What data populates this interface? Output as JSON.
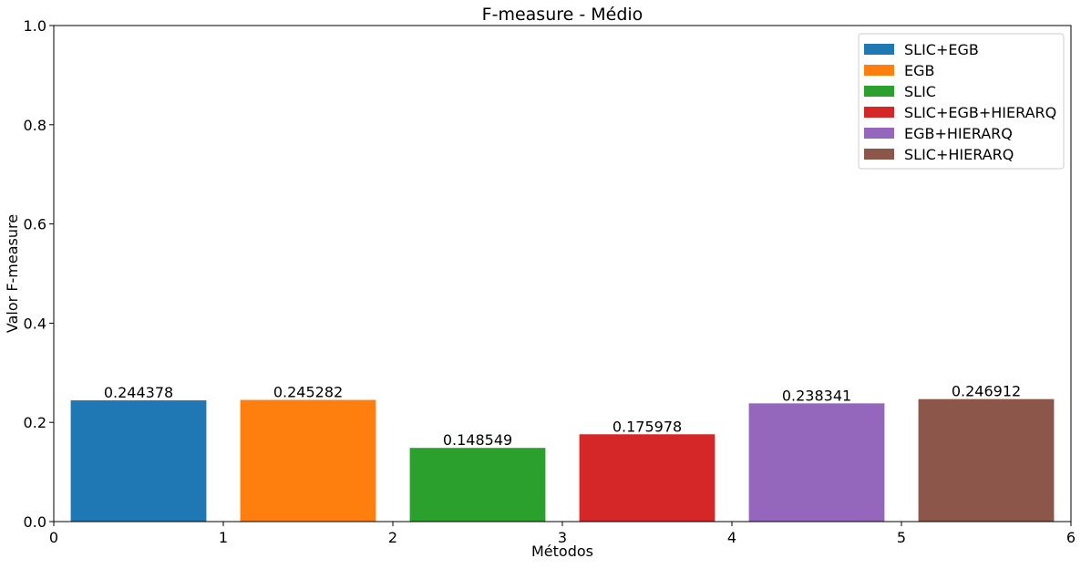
{
  "chart_data": {
    "type": "bar",
    "title": "F-measure - Médio",
    "xlabel": "Métodos",
    "ylabel": "Valor F-measure",
    "xlim": [
      0,
      6
    ],
    "ylim": [
      0,
      1.0
    ],
    "x_ticks": [
      "0",
      "1",
      "2",
      "3",
      "4",
      "5",
      "6"
    ],
    "y_ticks": [
      "0.0",
      "0.2",
      "0.4",
      "0.6",
      "0.8",
      "1.0"
    ],
    "grid": false,
    "legend_position": "top-right",
    "series": [
      {
        "name": "SLIC+EGB",
        "x": 0.5,
        "value": 0.244378,
        "label": "0.244378",
        "color": "#1f77b4"
      },
      {
        "name": "EGB",
        "x": 1.5,
        "value": 0.245282,
        "label": "0.245282",
        "color": "#ff7f0e"
      },
      {
        "name": "SLIC",
        "x": 2.5,
        "value": 0.148549,
        "label": "0.148549",
        "color": "#2ca02c"
      },
      {
        "name": "SLIC+EGB+HIERARQ",
        "x": 3.5,
        "value": 0.175978,
        "label": "0.175978",
        "color": "#d62728"
      },
      {
        "name": "EGB+HIERARQ",
        "x": 4.5,
        "value": 0.238341,
        "label": "0.238341",
        "color": "#9467bd"
      },
      {
        "name": "SLIC+HIERARQ",
        "x": 5.5,
        "value": 0.246912,
        "label": "0.246912",
        "color": "#8c564b"
      }
    ]
  }
}
